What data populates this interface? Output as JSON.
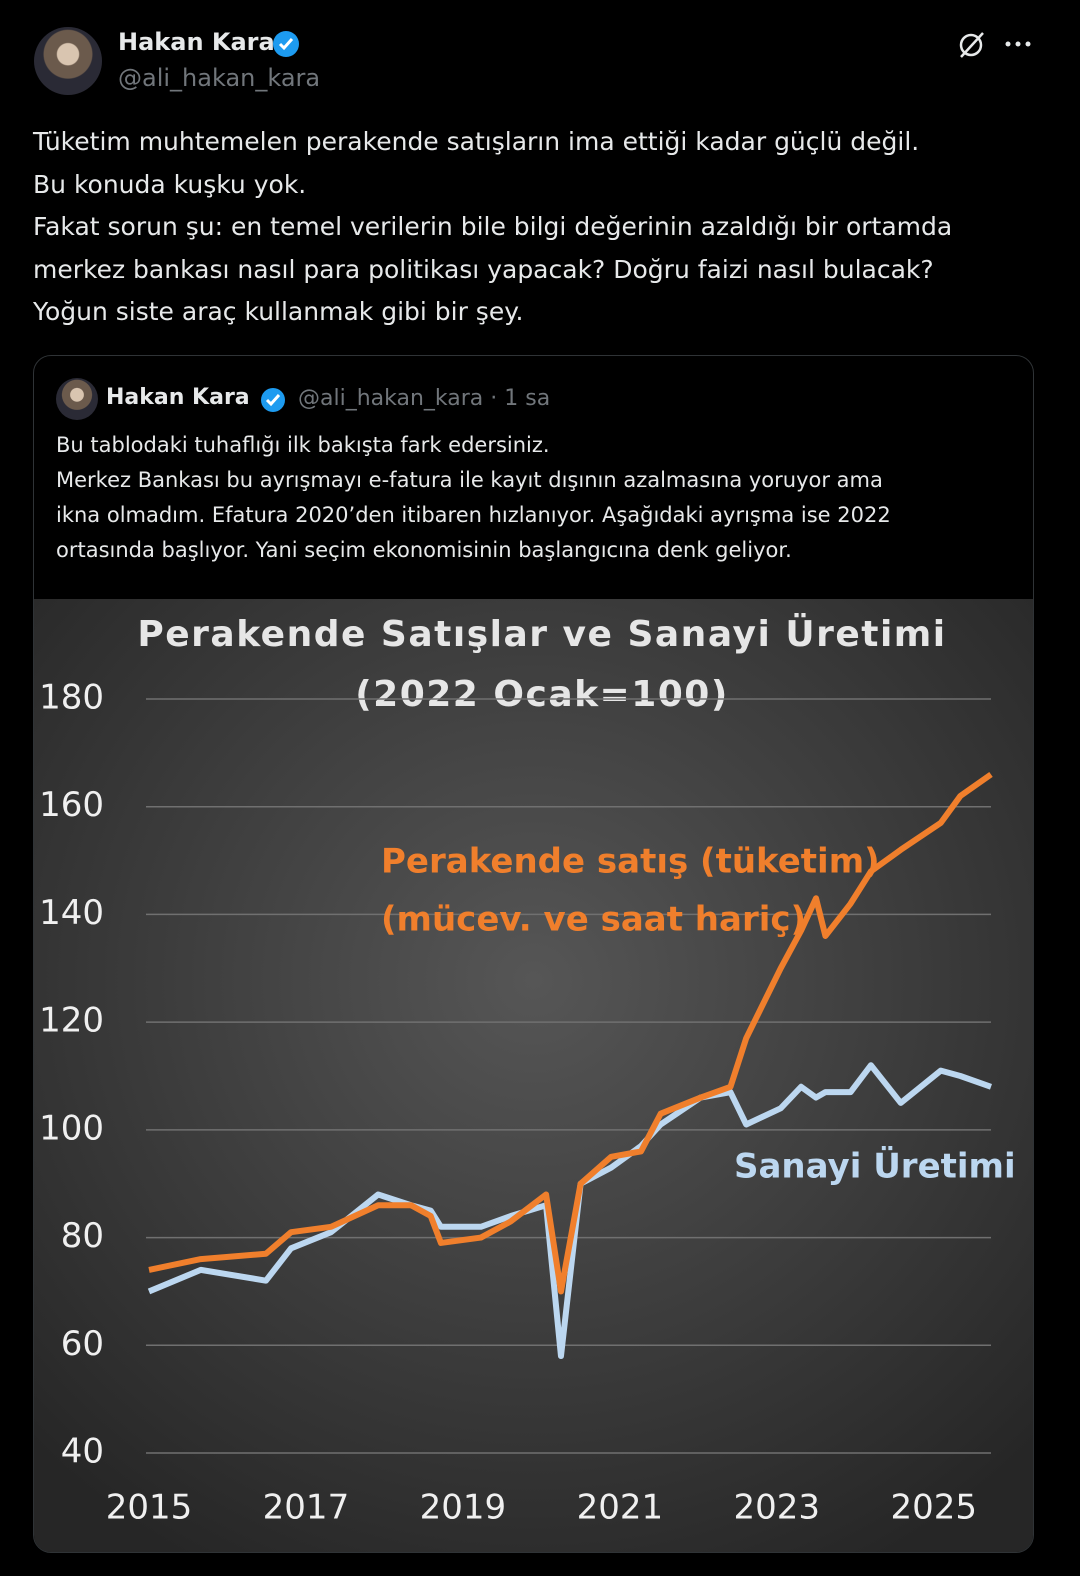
{
  "tweet": {
    "name": "Hakan Kara",
    "handle": "@ali_hakan_kara",
    "lines": [
      "Tüketim muhtemelen perakende satışların ima ettiği kadar güçlü değil.",
      "Bu konuda kuşku yok.",
      "Fakat sorun şu: en temel verilerin bile bilgi değerinin azaldığı bir ortamda",
      "merkez bankası nasıl para politikası yapacak? Doğru faizi nasıl bulacak?",
      "Yoğun siste araç kullanmak gibi bir şey."
    ]
  },
  "quoted": {
    "name": "Hakan Kara",
    "handle": "@ali_hakan_kara",
    "time": "· 1 sa",
    "lines": [
      "Bu tablodaki tuhaflığı ilk bakışta fark edersiniz.",
      "Merkez Bankası bu ayrışmayı e-fatura ile kayıt dışının azalmasına yoruyor ama",
      "ikna olmadım. Efatura 2020’den itibaren hızlanıyor. Aşağıdaki ayrışma ise 2022",
      "ortasında başlıyor. Yani seçim ekonomisinin başlangıcına denk geliyor."
    ]
  },
  "chart_data": {
    "type": "line",
    "title": "Perakende Satışlar ve Sanayi Üretimi",
    "subtitle": "(2022 Ocak=100)",
    "annotation": "(mücev. ve saat hariç)",
    "x": [
      2015.0,
      2015.66,
      2016.49,
      2016.81,
      2017.32,
      2017.92,
      2018.34,
      2018.59,
      2018.72,
      2019.23,
      2019.61,
      2020.06,
      2020.25,
      2020.5,
      2020.89,
      2021.27,
      2021.52,
      2022.03,
      2022.41,
      2022.61,
      2023.05,
      2023.31,
      2023.5,
      2023.62,
      2023.94,
      2024.2,
      2024.58,
      2025.09,
      2025.34,
      2025.73
    ],
    "series": [
      {
        "name": "Perakende satış (tüketim)",
        "color": "#f07f2c",
        "values": [
          74,
          76,
          77,
          81,
          82,
          86,
          86,
          84,
          79,
          80,
          83,
          88,
          70,
          90,
          95,
          96,
          103,
          106,
          108,
          117,
          130,
          137,
          143,
          136,
          142,
          148,
          152,
          157,
          162,
          166
        ]
      },
      {
        "name": "Sanayi Üretimi",
        "color": "#bcd7f0",
        "values": [
          70,
          74,
          72,
          78,
          81,
          88,
          86,
          85,
          82,
          82,
          84,
          86,
          58,
          90,
          93,
          97,
          101,
          106,
          107,
          101,
          104,
          108,
          106,
          107,
          107,
          112,
          105,
          111,
          110,
          108
        ]
      }
    ],
    "xlim": [
      2015,
      2025.73
    ],
    "ylim": [
      40,
      180
    ],
    "xticks": [
      2015,
      2017,
      2019,
      2021,
      2023,
      2025
    ],
    "yticks": [
      40,
      60,
      80,
      100,
      120,
      140,
      160,
      180
    ],
    "grid": true
  }
}
